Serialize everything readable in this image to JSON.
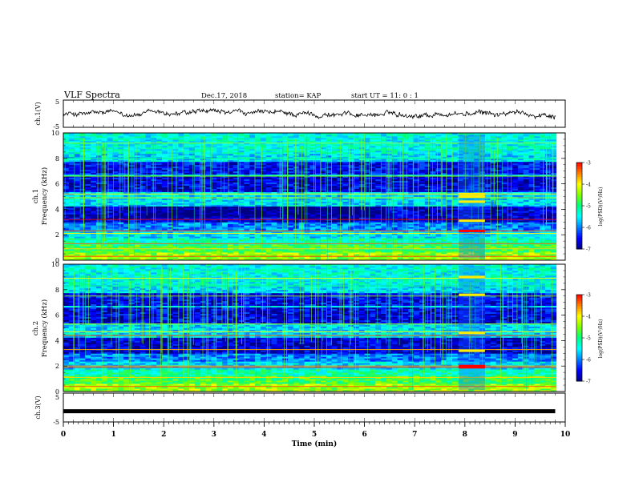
{
  "header": {
    "title": "VLF Spectra",
    "date": "Dec.17, 2018",
    "station": "station= KAP",
    "start": "start  UT =   11: 0  : 1"
  },
  "colors": {
    "background": "#ffffff",
    "axis": "#000000",
    "colormap": [
      "#000080",
      "#0000ff",
      "#0080ff",
      "#00ffff",
      "#00ff80",
      "#80ff00",
      "#ffff00",
      "#ff8000",
      "#ff0000",
      "#ffffff"
    ]
  },
  "chart_data": [
    {
      "type": "line",
      "panel": "ch1-waveform",
      "ylabel": "ch.1(V)",
      "xlim": [
        0,
        10
      ],
      "ylim": [
        -5,
        5
      ],
      "yticks": [
        "5",
        "-5"
      ],
      "description_of_series": "noisy waveform between about -2 and +1.5 V"
    },
    {
      "type": "heatmap",
      "panel": "ch1-spectrogram",
      "ylabel_channel": "ch.1",
      "ylabel": "Frequency (kHz)",
      "xlim": [
        0,
        10
      ],
      "ylim": [
        0,
        10
      ],
      "yticks": [
        "0",
        "2",
        "4",
        "6",
        "8",
        "10"
      ],
      "colorbar": {
        "label": "log(PSD)(V²/Hz)",
        "range": [
          -7,
          -3
        ],
        "ticks": [
          "-3",
          "-4",
          "-5",
          "-6",
          "-7"
        ]
      }
    },
    {
      "type": "heatmap",
      "panel": "ch2-spectrogram",
      "ylabel_channel": "ch.2",
      "ylabel": "Frequency (kHz)",
      "xlim": [
        0,
        10
      ],
      "ylim": [
        0,
        10
      ],
      "yticks": [
        "0",
        "2",
        "4",
        "6",
        "8",
        "10"
      ],
      "colorbar": {
        "label": "log(PSD)(V²/Hz)",
        "range": [
          -7,
          -3
        ],
        "ticks": [
          "-3",
          "-4",
          "-5",
          "-6",
          "-7"
        ]
      }
    },
    {
      "type": "line",
      "panel": "ch3-waveform",
      "ylabel": "ch.3(V)",
      "xlim": [
        0,
        10
      ],
      "ylim": [
        -5,
        5
      ],
      "yticks": [
        "5",
        "-5"
      ],
      "series": [
        {
          "x": [
            0,
            9.8
          ],
          "y": [
            -1.3,
            -1.3
          ]
        }
      ]
    }
  ],
  "xaxis": {
    "label": "Time (min)",
    "ticks": [
      "0",
      "1",
      "2",
      "3",
      "4",
      "5",
      "6",
      "7",
      "8",
      "9",
      "10"
    ]
  }
}
